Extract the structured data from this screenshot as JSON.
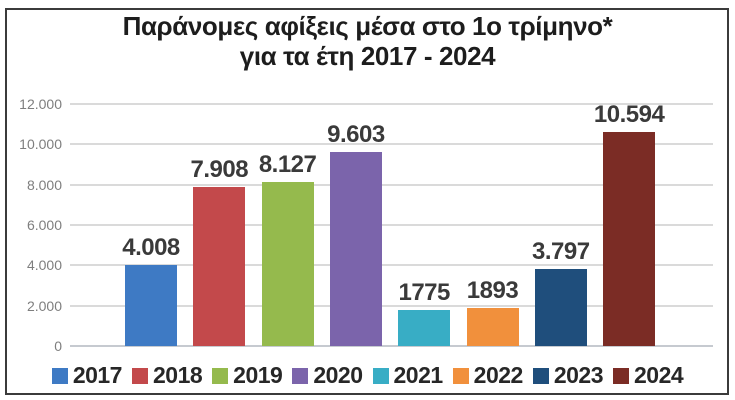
{
  "title": {
    "line1": "Παράνομες αφίξεις μέσα στο 1ο τρίμηνο*",
    "line2": "για τα έτη 2017 - 2024"
  },
  "chart_data": {
    "type": "bar",
    "title": "Παράνομες αφίξεις μέσα στο 1ο τρίμηνο* για τα έτη 2017 - 2024",
    "categories": [
      "2017",
      "2018",
      "2019",
      "2020",
      "2021",
      "2022",
      "2023",
      "2024"
    ],
    "values": [
      4008,
      7908,
      8127,
      9603,
      1775,
      1893,
      3797,
      10594
    ],
    "value_labels": [
      "4.008",
      "7.908",
      "8.127",
      "9.603",
      "1775",
      "1893",
      "3.797",
      "10.594"
    ],
    "bar_colors": [
      "#3e7ac4",
      "#c3494b",
      "#95ba4d",
      "#7b64ab",
      "#38adc5",
      "#f1903c",
      "#1f4e7c",
      "#7b2c25"
    ],
    "xlabel": "",
    "ylabel": "",
    "ylim": [
      0,
      12000
    ],
    "ytick_labels": [
      "0",
      "2.000",
      "4.000",
      "6.000",
      "8.000",
      "10.000",
      "12.000"
    ],
    "grid": true,
    "legend_position": "bottom"
  },
  "colors": {
    "grid": "#dadada",
    "axis_baseline": "#c6cad0",
    "axis_text": "#7e7e7e",
    "value_label_text": "#3a3a3a",
    "title_text": "#1d1d1d",
    "legend_text": "#272727",
    "frame_border": "#3b3b3b",
    "background": "#ffffff"
  }
}
